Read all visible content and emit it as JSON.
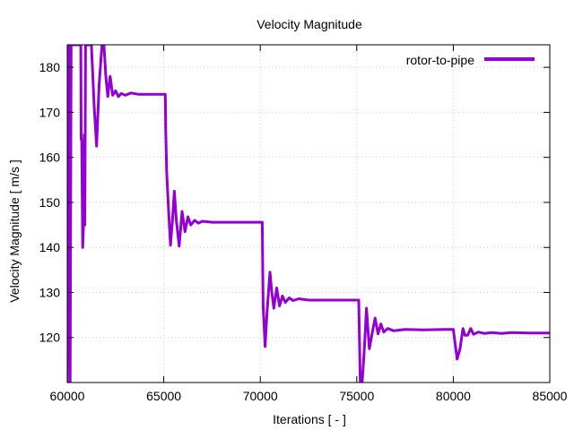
{
  "chart_data": {
    "type": "line",
    "title": "Velocity Magnitude",
    "xlabel": "Iterations [ - ]",
    "ylabel": "Velocity Magnitude [ m/s ]",
    "xlim": [
      60000,
      85000
    ],
    "ylim": [
      110,
      185
    ],
    "xticks": [
      60000,
      65000,
      70000,
      75000,
      80000,
      85000
    ],
    "yticks": [
      120,
      130,
      140,
      150,
      160,
      170,
      180
    ],
    "grid": true,
    "legend_position": "top-right",
    "colors": {
      "series": "#9400d3",
      "grid": "#cccccc",
      "axis": "#000000"
    },
    "series": [
      {
        "name": "rotor-to-pipe",
        "points": [
          [
            60000,
            110
          ],
          [
            60080,
            185
          ],
          [
            60150,
            110
          ],
          [
            60200,
            185
          ],
          [
            60400,
            185
          ],
          [
            60700,
            185
          ],
          [
            60720,
            164
          ],
          [
            60750,
            164
          ],
          [
            60800,
            140
          ],
          [
            60850,
            146
          ],
          [
            60880,
            165
          ],
          [
            60910,
            145
          ],
          [
            60950,
            185
          ],
          [
            61100,
            185
          ],
          [
            61250,
            185
          ],
          [
            61400,
            171
          ],
          [
            61520,
            162.5
          ],
          [
            61650,
            176
          ],
          [
            61800,
            185
          ],
          [
            61900,
            185
          ],
          [
            62000,
            178
          ],
          [
            62100,
            173.5
          ],
          [
            62220,
            178
          ],
          [
            62350,
            173.8
          ],
          [
            62500,
            174.8
          ],
          [
            62650,
            173.5
          ],
          [
            62800,
            174.2
          ],
          [
            63000,
            173.8
          ],
          [
            63300,
            174.3
          ],
          [
            63700,
            174
          ],
          [
            64200,
            174
          ],
          [
            65000,
            174
          ],
          [
            65080,
            174
          ],
          [
            65100,
            166
          ],
          [
            65150,
            157
          ],
          [
            65250,
            148
          ],
          [
            65350,
            140.5
          ],
          [
            65450,
            146
          ],
          [
            65550,
            152.5
          ],
          [
            65650,
            146
          ],
          [
            65800,
            140.3
          ],
          [
            65950,
            148
          ],
          [
            66100,
            143.5
          ],
          [
            66250,
            146.8
          ],
          [
            66400,
            145
          ],
          [
            66600,
            146
          ],
          [
            66800,
            145.4
          ],
          [
            67000,
            145.8
          ],
          [
            67500,
            145.6
          ],
          [
            68500,
            145.6
          ],
          [
            70000,
            145.6
          ],
          [
            70100,
            145.6
          ],
          [
            70150,
            127
          ],
          [
            70250,
            118
          ],
          [
            70350,
            125.5
          ],
          [
            70500,
            134.5
          ],
          [
            70600,
            130
          ],
          [
            70700,
            126.5
          ],
          [
            70850,
            131
          ],
          [
            71000,
            127
          ],
          [
            71150,
            129.2
          ],
          [
            71300,
            127.8
          ],
          [
            71500,
            128.8
          ],
          [
            71700,
            128.2
          ],
          [
            72000,
            128.6
          ],
          [
            72500,
            128.3
          ],
          [
            73500,
            128.3
          ],
          [
            75000,
            128.3
          ],
          [
            75100,
            128.3
          ],
          [
            75180,
            110
          ],
          [
            75280,
            110
          ],
          [
            75400,
            118
          ],
          [
            75500,
            126.5
          ],
          [
            75650,
            117.5
          ],
          [
            75800,
            121
          ],
          [
            75950,
            124.3
          ],
          [
            76100,
            120.8
          ],
          [
            76250,
            123
          ],
          [
            76400,
            121.2
          ],
          [
            76600,
            122
          ],
          [
            76900,
            121.5
          ],
          [
            77500,
            121.8
          ],
          [
            78500,
            121.7
          ],
          [
            79500,
            121.8
          ],
          [
            80000,
            121.8
          ],
          [
            80200,
            115.2
          ],
          [
            80350,
            117.5
          ],
          [
            80500,
            122
          ],
          [
            80600,
            120.5
          ],
          [
            80750,
            120.5
          ],
          [
            80900,
            122
          ],
          [
            81050,
            120.7
          ],
          [
            81300,
            121.2
          ],
          [
            81600,
            120.9
          ],
          [
            82000,
            121.1
          ],
          [
            82500,
            120.9
          ],
          [
            83000,
            121.1
          ],
          [
            84000,
            121
          ],
          [
            85000,
            121
          ]
        ]
      }
    ]
  }
}
